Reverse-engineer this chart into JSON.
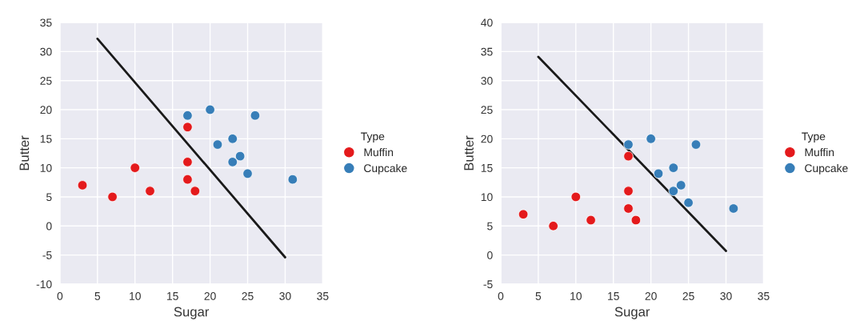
{
  "chart_data": [
    {
      "type": "scatter",
      "xlabel": "Sugar",
      "ylabel": "Butter",
      "legend_title": "Type",
      "legend": "right",
      "grid": true,
      "xlim": [
        0,
        35
      ],
      "xticks": [
        0,
        5,
        10,
        15,
        20,
        25,
        30,
        35
      ],
      "ylim": [
        -10,
        35
      ],
      "yticks": [
        -10,
        -5,
        0,
        5,
        10,
        15,
        20,
        25,
        30,
        35
      ],
      "series": [
        {
          "name": "Muffin",
          "color": "#e41a1c",
          "x": [
            3,
            7,
            10,
            12,
            17,
            17,
            17,
            18
          ],
          "values": [
            7,
            5,
            10,
            6,
            17,
            11,
            8,
            6
          ]
        },
        {
          "name": "Cupcake",
          "color": "#377eb8",
          "x": [
            17,
            20,
            26,
            21,
            23,
            24,
            23,
            25,
            31
          ],
          "values": [
            19,
            20,
            19,
            14,
            15,
            12,
            11,
            9,
            8
          ]
        },
        {
          "type": "line",
          "marker": "none",
          "color": "#1a1a1a",
          "x": [
            5,
            30
          ],
          "values": [
            32.2,
            -5.4
          ]
        }
      ]
    },
    {
      "type": "scatter",
      "xlabel": "Sugar",
      "ylabel": "Butter",
      "legend_title": "Type",
      "legend": "right",
      "grid": true,
      "xlim": [
        0,
        35
      ],
      "xticks": [
        0,
        5,
        10,
        15,
        20,
        25,
        30,
        35
      ],
      "ylim": [
        -5,
        40
      ],
      "yticks": [
        -5,
        0,
        5,
        10,
        15,
        20,
        25,
        30,
        35,
        40
      ],
      "series": [
        {
          "name": "Muffin",
          "color": "#e41a1c",
          "x": [
            3,
            7,
            10,
            12,
            17,
            17,
            17,
            18
          ],
          "values": [
            7,
            5,
            10,
            6,
            17,
            11,
            8,
            6
          ]
        },
        {
          "name": "Cupcake",
          "color": "#377eb8",
          "x": [
            17,
            20,
            26,
            21,
            23,
            24,
            23,
            25,
            31
          ],
          "values": [
            19,
            20,
            19,
            14,
            15,
            12,
            11,
            9,
            8
          ]
        },
        {
          "type": "line",
          "marker": "none",
          "color": "#1a1a1a",
          "x": [
            5,
            30
          ],
          "values": [
            34.1,
            0.7
          ]
        }
      ]
    }
  ]
}
